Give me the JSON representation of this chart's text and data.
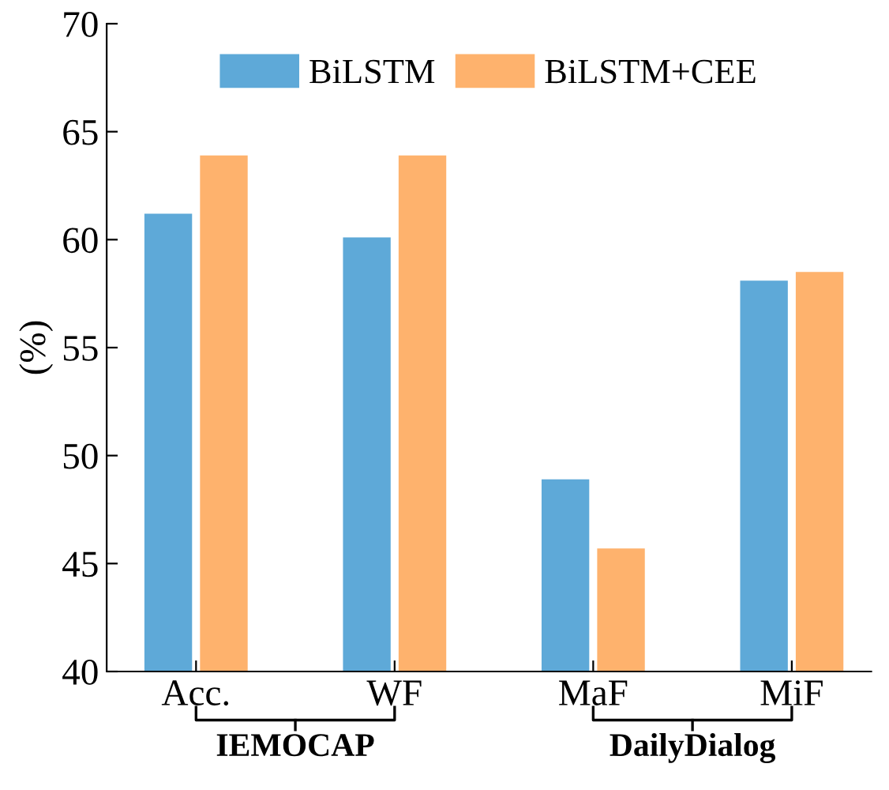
{
  "chart_data": {
    "type": "bar",
    "ylabel": "(%)",
    "categories": [
      "Acc.",
      "WF",
      "MaF",
      "MiF"
    ],
    "series": [
      {
        "name": "BiLSTM",
        "color": "#5ea9d8",
        "values": [
          61.2,
          60.1,
          48.9,
          58.1
        ]
      },
      {
        "name": "BiLSTM+CEE",
        "color": "#feb26d",
        "values": [
          63.9,
          63.9,
          45.7,
          58.5
        ]
      }
    ],
    "ylim": [
      40,
      70
    ],
    "yticks": [
      40,
      45,
      50,
      55,
      60,
      65,
      70
    ],
    "grid": false,
    "legend": "top",
    "annotations": [
      "IEMOCAP",
      "DailyDialog"
    ]
  }
}
